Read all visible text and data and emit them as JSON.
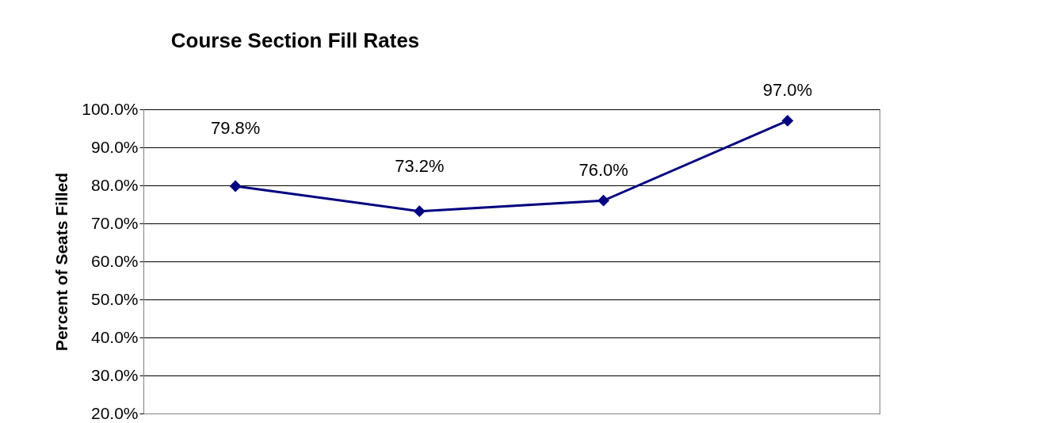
{
  "chart_data": {
    "type": "line",
    "title": "Course Section Fill Rates",
    "ylabel": "Percent of Seats Filled",
    "categories": [
      null,
      null,
      null,
      null
    ],
    "series": [
      {
        "color": "#000080",
        "values": [
          79.8,
          73.2,
          76.0,
          97.0
        ],
        "value_labels": [
          "79.8%",
          "73.2%",
          "76.0%",
          "97.0%"
        ]
      }
    ],
    "ylim": [
      20,
      100
    ],
    "yticks": [
      {
        "value": 20,
        "label": "20.0%"
      },
      {
        "value": 30,
        "label": "30.0%"
      },
      {
        "value": 40,
        "label": "40.0%"
      },
      {
        "value": 50,
        "label": "50.0%"
      },
      {
        "value": 60,
        "label": "60.0%"
      },
      {
        "value": 70,
        "label": "70.0%"
      },
      {
        "value": 80,
        "label": "80.0%"
      },
      {
        "value": 90,
        "label": "90.0%"
      },
      {
        "value": 100,
        "label": "100.0%"
      }
    ],
    "grid": "y",
    "marker": "diamond",
    "line_style": "solid"
  }
}
